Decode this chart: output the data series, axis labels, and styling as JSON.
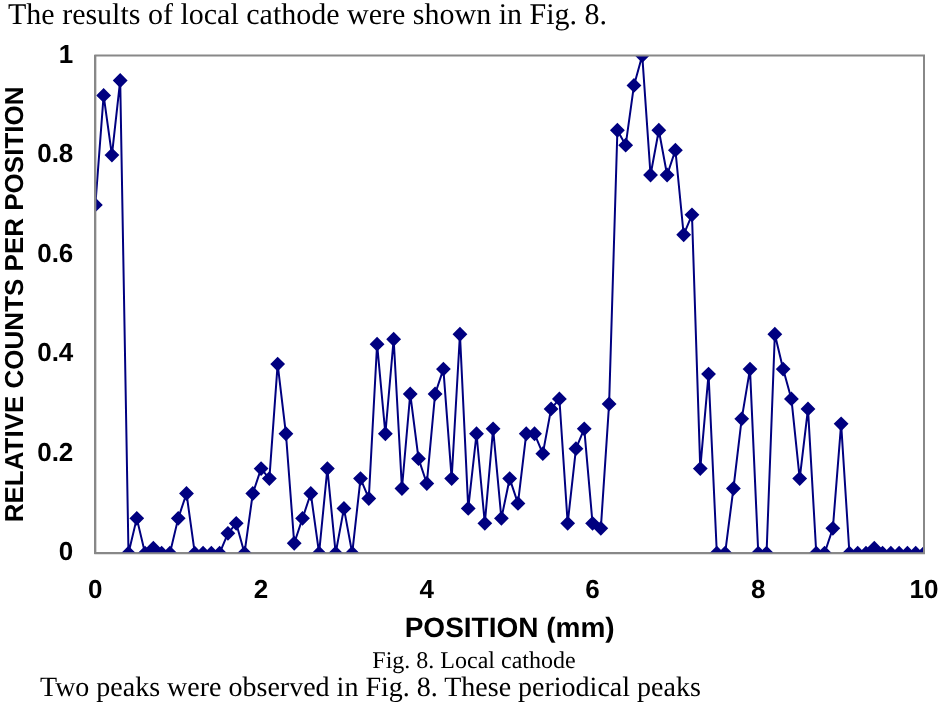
{
  "chart_data": {
    "type": "line",
    "xlabel": "POSITION (mm)",
    "ylabel": "RELATIVE COUNTS PER POSITION",
    "annotations": [
      "The results of local cathode were shown in Fig. 8.",
      "Fig. 8.  Local cathode",
      "Two peaks were observed in Fig. 8. These periodical peaks"
    ],
    "x": [
      0,
      0.1,
      0.2,
      0.3,
      0.4,
      0.5,
      0.6,
      0.7,
      0.8,
      0.9,
      1,
      1.1,
      1.2,
      1.3,
      1.4,
      1.5,
      1.6,
      1.7,
      1.8,
      1.9,
      2,
      2.1,
      2.2,
      2.3,
      2.4,
      2.5,
      2.6,
      2.7,
      2.8,
      2.9,
      3,
      3.1,
      3.2,
      3.3,
      3.4,
      3.5,
      3.6,
      3.7,
      3.8,
      3.9,
      4,
      4.1,
      4.2,
      4.3,
      4.4,
      4.5,
      4.6,
      4.7,
      4.8,
      4.9,
      5,
      5.1,
      5.2,
      5.3,
      5.4,
      5.5,
      5.6,
      5.7,
      5.8,
      5.9,
      6,
      6.1,
      6.2,
      6.3,
      6.4,
      6.5,
      6.6,
      6.7,
      6.8,
      6.9,
      7,
      7.1,
      7.2,
      7.3,
      7.4,
      7.5,
      7.6,
      7.7,
      7.8,
      7.9,
      8,
      8.1,
      8.2,
      8.3,
      8.4,
      8.5,
      8.6,
      8.7,
      8.8,
      8.9,
      9,
      9.1,
      9.2,
      9.3,
      9.4,
      9.5,
      9.6,
      9.7,
      9.8,
      9.9,
      10
    ],
    "series": [
      {
        "color": "#000080",
        "values": [
          0.7,
          0.92,
          0.8,
          0.95,
          0,
          0.07,
          0,
          0.01,
          0,
          0,
          0.07,
          0.12,
          0,
          0,
          0,
          0,
          0.04,
          0.06,
          0,
          0.12,
          0.17,
          0.15,
          0.38,
          0.24,
          0.02,
          0.07,
          0.12,
          0,
          0.17,
          0,
          0.09,
          0,
          0.15,
          0.11,
          0.42,
          0.24,
          0.43,
          0.13,
          0.32,
          0.19,
          0.14,
          0.32,
          0.37,
          0.15,
          0.44,
          0.09,
          0.24,
          0.06,
          0.25,
          0.07,
          0.15,
          0.1,
          0.24,
          0.24,
          0.2,
          0.29,
          0.31,
          0.06,
          0.21,
          0.25,
          0.06,
          0.05,
          0.3,
          0.85,
          0.82,
          0.94,
          1.0,
          0.76,
          0.85,
          0.76,
          0.81,
          0.64,
          0.68,
          0.17,
          0.36,
          0,
          0,
          0.13,
          0.27,
          0.37,
          0,
          0,
          0.44,
          0.37,
          0.31,
          0.15,
          0.29,
          0,
          0,
          0.05,
          0.26,
          0,
          0,
          0,
          0.01,
          0,
          0,
          0,
          0,
          0,
          0
        ]
      }
    ],
    "xlim": [
      0,
      10
    ],
    "ylim": [
      0,
      1
    ],
    "xticks": [
      0,
      2,
      4,
      6,
      8,
      10
    ],
    "yticks": [
      0,
      0.2,
      0.4,
      0.6,
      0.8,
      1
    ],
    "grid": false,
    "legend": false,
    "marker": "diamond",
    "line_style": "solid"
  }
}
